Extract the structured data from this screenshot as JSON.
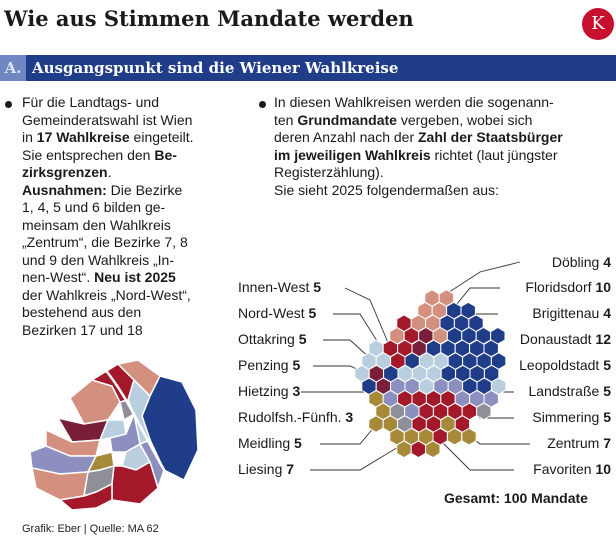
{
  "header": {
    "title": "Wie aus Stimmen Mandate werden",
    "logo_letter": "K"
  },
  "section": {
    "letter": "A.",
    "title": "Ausgangspunkt sind die Wiener Wahlkreise"
  },
  "left_text": {
    "l1": "Für die Landtags- und",
    "l2": "Gemeinderatswahl ist Wien",
    "l3a": "in ",
    "l3b": "17 Wahlkreise",
    "l3c": " eingeteilt.",
    "l4a": "Sie entsprechen den ",
    "l4b": "Be-",
    "l5": "zirksgrenzen",
    "l5c": ".",
    "l6a": "Ausnahmen:",
    "l6b": " Die Bezirke",
    "l7": "1, 4, 5 und 6 bilden ge-",
    "l8": "meinsam den Wahlkreis",
    "l9": "„Zentrum“, die Bezirke 7, 8",
    "l10": "und 9 den Wahlkreis „In-",
    "l11a": "nen-West“. ",
    "l11b": "Neu ist 2025",
    "l12": "der Wahlkreis „Nord-West“,",
    "l13": "bestehend aus den",
    "l14": "Bezirken 17 und 18"
  },
  "right_text": {
    "l1": "In diesen Wahlkreisen werden die sogenann-",
    "l2a": "ten ",
    "l2b": "Grundmandate",
    "l2c": " vergeben, wobei sich",
    "l3a": "deren Anzahl nach der ",
    "l3b": "Zahl der Staatsbürger",
    "l4a": "im jeweiligen Wahlkreis",
    "l4b": " richtet (laut jüngster",
    "l5": "Registerzählung).",
    "l6": "Sie sieht 2025 folgendermaßen aus:"
  },
  "left_labels": [
    {
      "name": "Innen-West",
      "value": "5"
    },
    {
      "name": "Nord-West",
      "value": "5"
    },
    {
      "name": "Ottakring",
      "value": "5"
    },
    {
      "name": "Penzing",
      "value": "5"
    },
    {
      "name": "Hietzing",
      "value": "3"
    },
    {
      "name": "Rudolfsh.-Fünfh.",
      "value": "3"
    },
    {
      "name": "Meidling",
      "value": "5"
    },
    {
      "name": "Liesing",
      "value": "7"
    }
  ],
  "right_labels": [
    {
      "name": "Döbling",
      "value": "4"
    },
    {
      "name": "Floridsdorf",
      "value": "10"
    },
    {
      "name": "Brigittenau",
      "value": "4"
    },
    {
      "name": "Donaustadt",
      "value": "12"
    },
    {
      "name": "Leopoldstadt",
      "value": "5"
    },
    {
      "name": "Landstraße",
      "value": "5"
    },
    {
      "name": "Simmering",
      "value": "5"
    },
    {
      "name": "Zentrum",
      "value": "7"
    },
    {
      "name": "Favoriten",
      "value": "10"
    }
  ],
  "total": "Gesamt: 100 Mandate",
  "credit": "Grafik: Eber | Quelle: MA 62",
  "colors": {
    "navy": "#1f3d88",
    "red": "#a3192a",
    "salmon": "#d4907e",
    "lightblue": "#b9cfe0",
    "purple": "#8c8fbf",
    "olive": "#a68a3a",
    "maroon": "#7a1f3a",
    "grey": "#8f8f99"
  }
}
